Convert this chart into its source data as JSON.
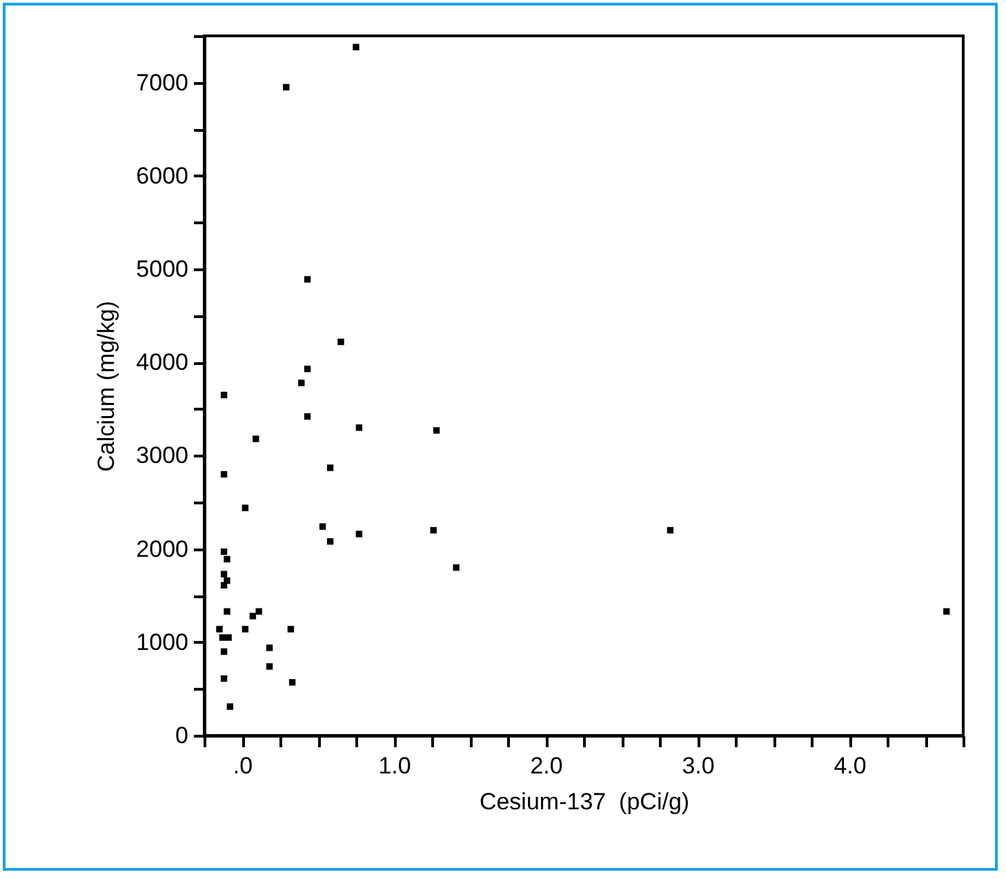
{
  "chart_data": {
    "type": "scatter",
    "xlabel": "Cesium-137  (pCi/g)",
    "ylabel": "Calcium (mg/kg)",
    "marker": "square",
    "grid": false,
    "legend": false,
    "xlim": [
      -0.25,
      4.75
    ],
    "xticks": [
      {
        "value": -0.25,
        "label": null
      },
      {
        "value": 0,
        "label": ".0"
      },
      {
        "value": 0.25,
        "label": null
      },
      {
        "value": 0.5,
        "label": null
      },
      {
        "value": 0.75,
        "label": null
      },
      {
        "value": 1,
        "label": "1.0"
      },
      {
        "value": 1.25,
        "label": null
      },
      {
        "value": 1.5,
        "label": null
      },
      {
        "value": 1.75,
        "label": null
      },
      {
        "value": 2,
        "label": "2.0"
      },
      {
        "value": 2.25,
        "label": null
      },
      {
        "value": 2.5,
        "label": null
      },
      {
        "value": 2.75,
        "label": null
      },
      {
        "value": 3,
        "label": "3.0"
      },
      {
        "value": 3.25,
        "label": null
      },
      {
        "value": 3.5,
        "label": null
      },
      {
        "value": 3.75,
        "label": null
      },
      {
        "value": 4,
        "label": "4.0"
      },
      {
        "value": 4.25,
        "label": null
      },
      {
        "value": 4.5,
        "label": null
      },
      {
        "value": 4.75,
        "label": null
      }
    ],
    "ylim": [
      0,
      7500
    ],
    "yticks": [
      0,
      {
        "value": 500,
        "label": null
      },
      1000,
      {
        "value": 1500,
        "label": null
      },
      2000,
      {
        "value": 2500,
        "label": null
      },
      3000,
      {
        "value": 3500,
        "label": null
      },
      4000,
      {
        "value": 4500,
        "label": null
      },
      5000,
      {
        "value": 5500,
        "label": null
      },
      6000,
      {
        "value": 6500,
        "label": null
      },
      7000,
      {
        "value": 7500,
        "label": null
      }
    ],
    "series": [
      {
        "color": "#000000",
        "x": [
          0.75,
          0.29,
          0.43,
          0.65,
          0.43,
          0.39,
          -0.12,
          0.43,
          0.77,
          1.28,
          0.09,
          0.58,
          -0.12,
          0.02,
          0.53,
          0.77,
          1.26,
          0.58,
          1.41,
          -0.12,
          -0.1,
          -0.12,
          -0.1,
          -0.12,
          -0.1,
          0.11,
          0.07,
          -0.15,
          0.02,
          0.32,
          -0.13,
          -0.09,
          -0.12,
          0.18,
          0.18,
          -0.12,
          0.33,
          -0.08,
          2.82,
          4.64
        ],
        "values": [
          7380,
          6950,
          4890,
          4220,
          3930,
          3780,
          3650,
          3420,
          3300,
          3270,
          3180,
          2870,
          2800,
          2440,
          2240,
          2160,
          2200,
          2080,
          1800,
          1970,
          1890,
          1730,
          1660,
          1610,
          1330,
          1330,
          1280,
          1140,
          1140,
          1140,
          1050,
          1050,
          900,
          940,
          740,
          610,
          570,
          310,
          2200,
          1330
        ]
      }
    ]
  }
}
